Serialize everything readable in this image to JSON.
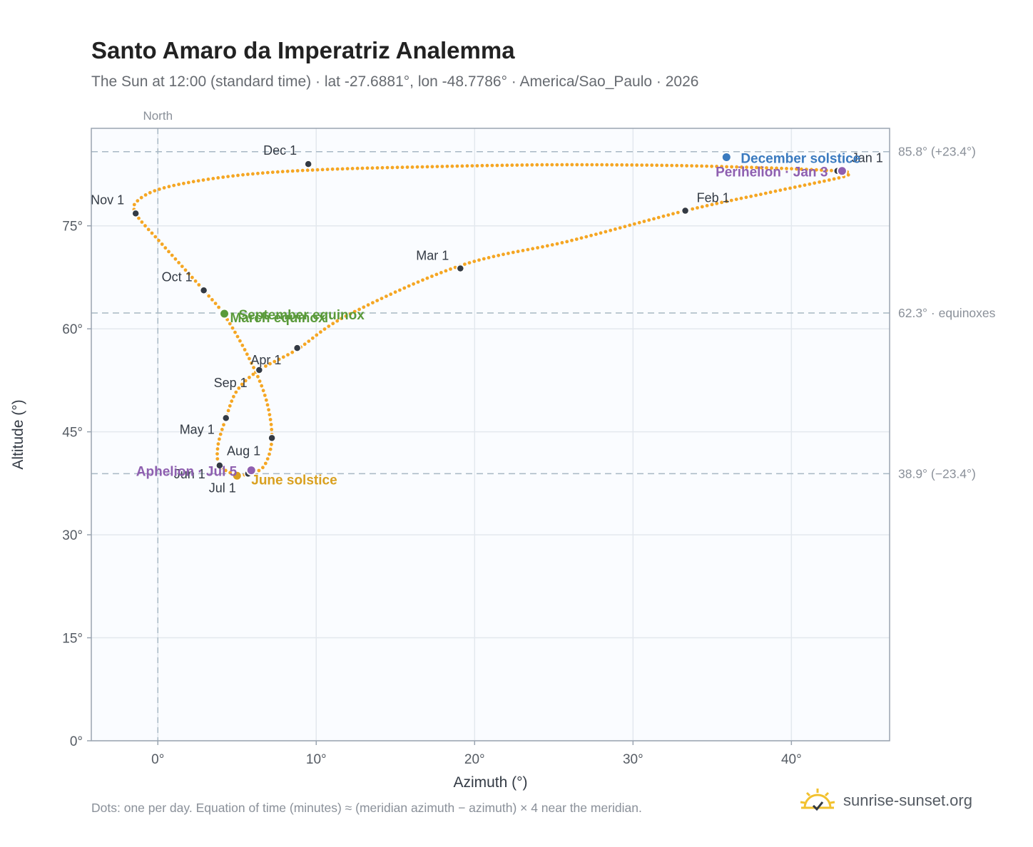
{
  "header": {
    "title": "Santo Amaro da Imperatriz Analemma",
    "subtitle": "The Sun at 12:00 (standard time) · lat -27.6881°, lon -48.7786° · America/Sao_Paulo · 2026"
  },
  "footer": {
    "note": "Dots: one per day. Equation of time (minutes) ≈ (meridian azimuth − azimuth) × 4 near the meridian.",
    "brand": "sunrise-sunset.org",
    "brand_icon": "sun-icon"
  },
  "colors": {
    "analemma": "#f5a623",
    "month_marker": "#333a44",
    "solstice_december": "#3a7abf",
    "solstice_june": "#d9a020",
    "equinox": "#5a9a3a",
    "apsis": "#8e5fb0",
    "reference_line": "#a8b8c4",
    "plot_background": "#fafcff",
    "grid": "#e3e8ee"
  },
  "chart_data": {
    "type": "scatter",
    "xlabel": "Azimuth (°)",
    "ylabel": "Altitude (°)",
    "xlim": [
      -4.2,
      46.2
    ],
    "ylim": [
      0,
      89.2
    ],
    "x_ticks": [
      0,
      10,
      20,
      30,
      40
    ],
    "x_tick_labels": [
      "0°",
      "10°",
      "20°",
      "30°",
      "40°"
    ],
    "y_ticks": [
      0,
      15,
      30,
      45,
      60,
      75
    ],
    "y_tick_labels": [
      "0°",
      "15°",
      "30°",
      "45°",
      "60°",
      "75°"
    ],
    "grid": true,
    "north_line": {
      "azimuth": 0,
      "label": "North"
    },
    "reference_lines": [
      {
        "altitude": 85.8,
        "label": "85.8° (+23.4°)"
      },
      {
        "altitude": 62.3,
        "label": "62.3° · equinoxes"
      },
      {
        "altitude": 38.9,
        "label": "38.9° (−23.4°)"
      }
    ],
    "daily_path_keypoints": [
      {
        "x": 42.9,
        "y": 83.0
      },
      {
        "x": 43.3,
        "y": 82.6
      },
      {
        "x": 43.2,
        "y": 82.1
      },
      {
        "x": 38.5,
        "y": 79.8
      },
      {
        "x": 33.3,
        "y": 77.2
      },
      {
        "x": 26.0,
        "y": 72.8
      },
      {
        "x": 19.1,
        "y": 69.2
      },
      {
        "x": 12.0,
        "y": 62.0
      },
      {
        "x": 8.8,
        "y": 57.0
      },
      {
        "x": 6.4,
        "y": 54.0
      },
      {
        "x": 5.0,
        "y": 51.0
      },
      {
        "x": 4.3,
        "y": 47.0
      },
      {
        "x": 3.8,
        "y": 43.0
      },
      {
        "x": 3.9,
        "y": 40.1
      },
      {
        "x": 5.0,
        "y": 38.7
      },
      {
        "x": 5.7,
        "y": 38.9
      },
      {
        "x": 6.7,
        "y": 40.0
      },
      {
        "x": 7.2,
        "y": 44.1
      },
      {
        "x": 6.8,
        "y": 50.0
      },
      {
        "x": 5.7,
        "y": 56.0
      },
      {
        "x": 4.2,
        "y": 62.0
      },
      {
        "x": 2.9,
        "y": 65.6
      },
      {
        "x": 0.2,
        "y": 72.5
      },
      {
        "x": -1.4,
        "y": 76.8
      },
      {
        "x": -1.2,
        "y": 78.8
      },
      {
        "x": 0.5,
        "y": 80.6
      },
      {
        "x": 4.5,
        "y": 82.2
      },
      {
        "x": 9.5,
        "y": 83.1
      },
      {
        "x": 17.0,
        "y": 83.6
      },
      {
        "x": 26.0,
        "y": 83.9
      },
      {
        "x": 36.0,
        "y": 83.6
      },
      {
        "x": 42.9,
        "y": 83.0
      }
    ],
    "month_markers": [
      {
        "label": "Jan 1",
        "x": 42.9,
        "y": 83.0
      },
      {
        "label": "Feb 1",
        "x": 33.3,
        "y": 77.2
      },
      {
        "label": "Mar 1",
        "x": 19.1,
        "y": 68.8
      },
      {
        "label": "Apr 1",
        "x": 6.4,
        "y": 54.0
      },
      {
        "label": "May 1",
        "x": 4.3,
        "y": 47.0
      },
      {
        "label": "Jun 1",
        "x": 3.9,
        "y": 40.1
      },
      {
        "label": "Jul 1",
        "x": 5.7,
        "y": 38.9
      },
      {
        "label": "Aug 1",
        "x": 7.2,
        "y": 44.1
      },
      {
        "label": "Sep 1",
        "x": 8.8,
        "y": 57.2
      },
      {
        "label": "Oct 1",
        "x": 2.9,
        "y": 65.6
      },
      {
        "label": "Nov 1",
        "x": -1.4,
        "y": 76.8
      },
      {
        "label": "Dec 1",
        "x": 9.5,
        "y": 84.0
      }
    ],
    "events": [
      {
        "label": "December solstice",
        "x": 35.9,
        "y": 85.0,
        "kind": "solstice_december"
      },
      {
        "label": "June solstice",
        "x": 5.0,
        "y": 38.6,
        "kind": "solstice_june"
      },
      {
        "label": "March equinox",
        "x": 4.2,
        "y": 62.2,
        "kind": "equinox"
      },
      {
        "label": "September equinox",
        "x": 4.2,
        "y": 62.2,
        "kind": "equinox"
      },
      {
        "label": "Perihelion · Jan 3",
        "x": 43.2,
        "y": 83.0,
        "kind": "apsis"
      },
      {
        "label": "Aphelion · Jul 5",
        "x": 5.9,
        "y": 39.4,
        "kind": "apsis"
      }
    ]
  }
}
